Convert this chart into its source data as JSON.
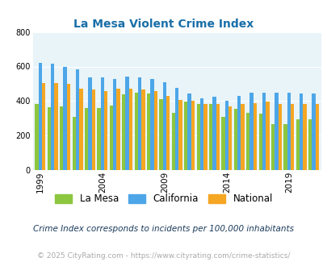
{
  "title": "La Mesa Violent Crime Index",
  "years": [
    1999,
    2000,
    2001,
    2002,
    2003,
    2004,
    2005,
    2006,
    2007,
    2008,
    2009,
    2010,
    2011,
    2012,
    2013,
    2014,
    2015,
    2016,
    2017,
    2018,
    2019,
    2020,
    2021
  ],
  "la_mesa": [
    385,
    365,
    370,
    310,
    360,
    360,
    375,
    440,
    450,
    445,
    410,
    330,
    395,
    385,
    385,
    310,
    355,
    330,
    325,
    265,
    265,
    295,
    295
  ],
  "california": [
    620,
    615,
    600,
    585,
    535,
    535,
    530,
    540,
    535,
    530,
    510,
    475,
    445,
    415,
    425,
    400,
    430,
    450,
    450,
    450,
    450,
    445,
    445
  ],
  "national": [
    505,
    505,
    500,
    470,
    465,
    460,
    470,
    470,
    465,
    460,
    430,
    405,
    400,
    385,
    385,
    370,
    385,
    390,
    395,
    385,
    385,
    385,
    385
  ],
  "colors": {
    "la_mesa": "#8dc63f",
    "california": "#4da6e8",
    "national": "#f5a623"
  },
  "ylim": [
    0,
    800
  ],
  "yticks": [
    0,
    200,
    400,
    600,
    800
  ],
  "xtick_labels": [
    "1999",
    "2004",
    "2009",
    "2014",
    "2019"
  ],
  "xtick_positions": [
    0,
    5,
    10,
    15,
    20
  ],
  "background_color": "#e8f4f8",
  "legend_labels": [
    "La Mesa",
    "California",
    "National"
  ],
  "footnote1": "Crime Index corresponds to incidents per 100,000 inhabitants",
  "footnote2": "© 2025 CityRating.com - https://www.cityrating.com/crime-statistics/",
  "title_color": "#1a6fa8",
  "footnote1_color": "#1a3a5c",
  "footnote2_color": "#aaaaaa"
}
